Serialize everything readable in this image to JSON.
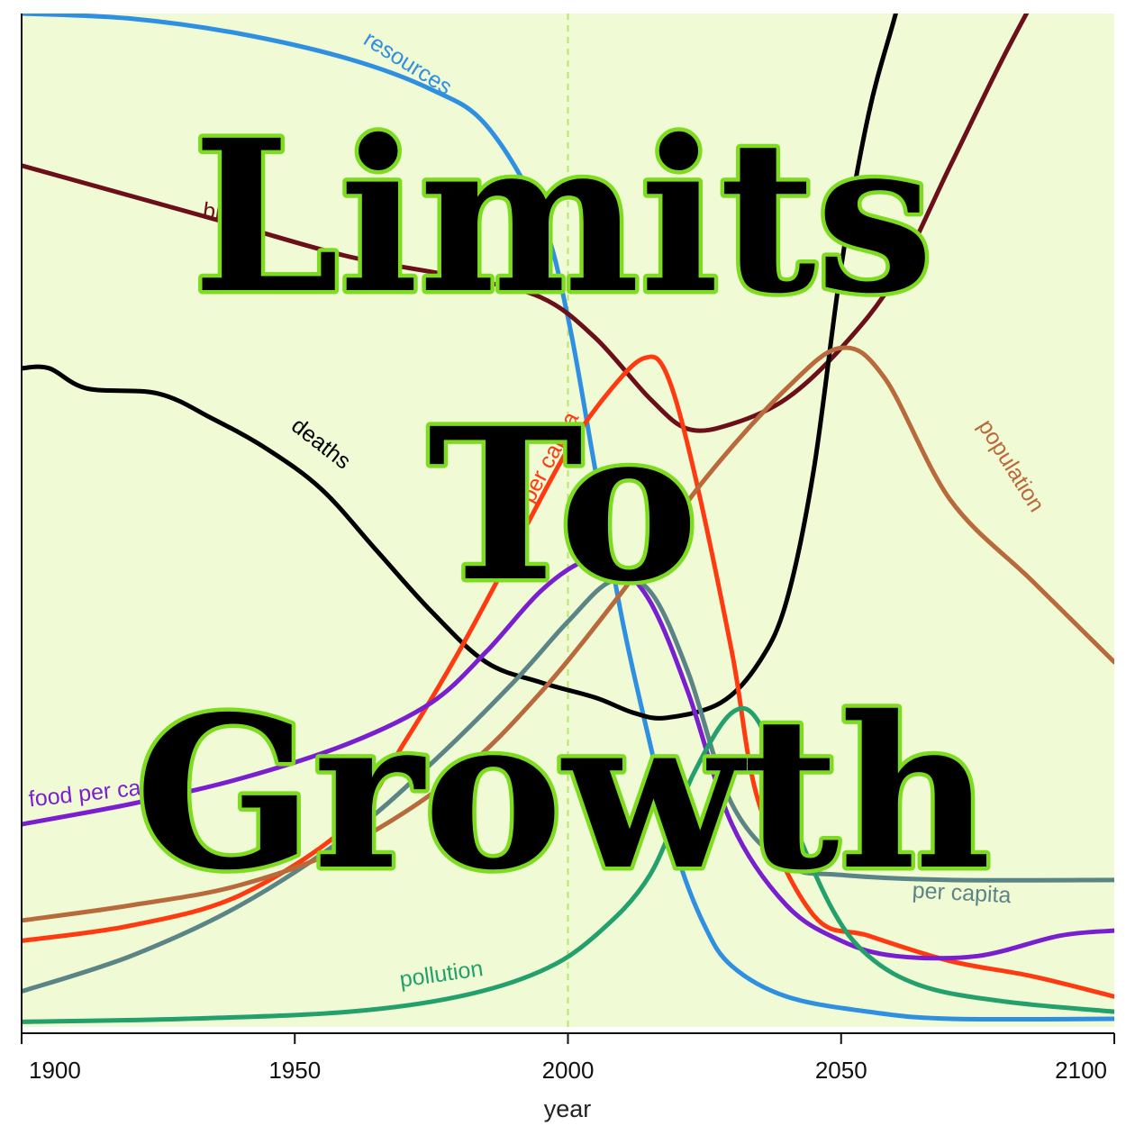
{
  "overlay": {
    "line1": "Limits",
    "line2": "To",
    "line3": "Growth"
  },
  "chart_data": {
    "type": "line",
    "xlabel": "year",
    "ylabel": "",
    "xlim": [
      1900,
      2100
    ],
    "ylim": [
      0,
      1
    ],
    "x_ticks": [
      1900,
      1950,
      2000,
      2050,
      2100
    ],
    "reference_line": {
      "x": 2000,
      "style": "dashed",
      "color": "#b9e66b"
    },
    "background": "#f0fad4",
    "grid": false,
    "series": [
      {
        "name": "resources",
        "color": "#2f8fe0",
        "points": [
          [
            1900,
            1.0
          ],
          [
            1920,
            0.995
          ],
          [
            1940,
            0.98
          ],
          [
            1960,
            0.955
          ],
          [
            1975,
            0.925
          ],
          [
            1985,
            0.89
          ],
          [
            1995,
            0.8
          ],
          [
            2000,
            0.7
          ],
          [
            2005,
            0.55
          ],
          [
            2010,
            0.4
          ],
          [
            2015,
            0.28
          ],
          [
            2020,
            0.17
          ],
          [
            2025,
            0.1
          ],
          [
            2030,
            0.06
          ],
          [
            2040,
            0.03
          ],
          [
            2055,
            0.015
          ],
          [
            2070,
            0.008
          ],
          [
            2100,
            0.008
          ]
        ]
      },
      {
        "name": "births",
        "color": "#6b0f1a",
        "points": [
          [
            1900,
            0.85
          ],
          [
            1920,
            0.82
          ],
          [
            1940,
            0.79
          ],
          [
            1960,
            0.76
          ],
          [
            1980,
            0.74
          ],
          [
            1995,
            0.72
          ],
          [
            2005,
            0.68
          ],
          [
            2015,
            0.62
          ],
          [
            2022,
            0.59
          ],
          [
            2030,
            0.595
          ],
          [
            2040,
            0.62
          ],
          [
            2050,
            0.67
          ],
          [
            2060,
            0.74
          ],
          [
            2070,
            0.85
          ],
          [
            2080,
            0.96
          ],
          [
            2090,
            1.06
          ]
        ]
      },
      {
        "name": "deaths",
        "color": "#000000",
        "points": [
          [
            1900,
            0.65
          ],
          [
            1905,
            0.65
          ],
          [
            1912,
            0.63
          ],
          [
            1925,
            0.625
          ],
          [
            1935,
            0.6
          ],
          [
            1945,
            0.57
          ],
          [
            1955,
            0.53
          ],
          [
            1965,
            0.47
          ],
          [
            1975,
            0.41
          ],
          [
            1985,
            0.36
          ],
          [
            1995,
            0.34
          ],
          [
            2005,
            0.325
          ],
          [
            2012,
            0.31
          ],
          [
            2018,
            0.305
          ],
          [
            2028,
            0.32
          ],
          [
            2035,
            0.36
          ],
          [
            2040,
            0.42
          ],
          [
            2045,
            0.55
          ],
          [
            2050,
            0.75
          ],
          [
            2055,
            0.9
          ],
          [
            2060,
            1.0
          ],
          [
            2065,
            1.1
          ]
        ]
      },
      {
        "name": "services per capita",
        "color": "#ff3a10",
        "points": [
          [
            1900,
            0.085
          ],
          [
            1920,
            0.1
          ],
          [
            1940,
            0.13
          ],
          [
            1960,
            0.2
          ],
          [
            1970,
            0.28
          ],
          [
            1980,
            0.37
          ],
          [
            1990,
            0.47
          ],
          [
            2000,
            0.57
          ],
          [
            2008,
            0.63
          ],
          [
            2014,
            0.66
          ],
          [
            2018,
            0.645
          ],
          [
            2023,
            0.55
          ],
          [
            2030,
            0.37
          ],
          [
            2035,
            0.22
          ],
          [
            2045,
            0.11
          ],
          [
            2055,
            0.09
          ],
          [
            2070,
            0.065
          ],
          [
            2085,
            0.05
          ],
          [
            2100,
            0.03
          ]
        ]
      },
      {
        "name": "food per capita",
        "color": "#7a1fd0",
        "points": [
          [
            1900,
            0.2
          ],
          [
            1920,
            0.22
          ],
          [
            1940,
            0.245
          ],
          [
            1960,
            0.28
          ],
          [
            1975,
            0.32
          ],
          [
            1985,
            0.37
          ],
          [
            1995,
            0.43
          ],
          [
            2003,
            0.46
          ],
          [
            2008,
            0.46
          ],
          [
            2015,
            0.42
          ],
          [
            2022,
            0.33
          ],
          [
            2030,
            0.2
          ],
          [
            2040,
            0.12
          ],
          [
            2050,
            0.085
          ],
          [
            2060,
            0.07
          ],
          [
            2075,
            0.07
          ],
          [
            2090,
            0.09
          ],
          [
            2100,
            0.095
          ]
        ]
      },
      {
        "name": "industrial output per capita",
        "color": "#5b8486",
        "points": [
          [
            1900,
            0.035
          ],
          [
            1920,
            0.07
          ],
          [
            1940,
            0.12
          ],
          [
            1960,
            0.19
          ],
          [
            1975,
            0.26
          ],
          [
            1990,
            0.34
          ],
          [
            2000,
            0.4
          ],
          [
            2008,
            0.44
          ],
          [
            2015,
            0.43
          ],
          [
            2022,
            0.35
          ],
          [
            2030,
            0.22
          ],
          [
            2040,
            0.16
          ],
          [
            2050,
            0.15
          ],
          [
            2070,
            0.145
          ],
          [
            2100,
            0.145
          ]
        ]
      },
      {
        "name": "population",
        "color": "#b86a3c",
        "points": [
          [
            1900,
            0.105
          ],
          [
            1920,
            0.12
          ],
          [
            1940,
            0.14
          ],
          [
            1960,
            0.18
          ],
          [
            1980,
            0.25
          ],
          [
            1995,
            0.33
          ],
          [
            2010,
            0.43
          ],
          [
            2025,
            0.54
          ],
          [
            2040,
            0.63
          ],
          [
            2050,
            0.67
          ],
          [
            2058,
            0.64
          ],
          [
            2070,
            0.52
          ],
          [
            2085,
            0.44
          ],
          [
            2100,
            0.36
          ]
        ]
      },
      {
        "name": "pollution",
        "color": "#23a06c",
        "points": [
          [
            1900,
            0.005
          ],
          [
            1930,
            0.008
          ],
          [
            1960,
            0.015
          ],
          [
            1980,
            0.03
          ],
          [
            1995,
            0.055
          ],
          [
            2005,
            0.09
          ],
          [
            2015,
            0.15
          ],
          [
            2023,
            0.25
          ],
          [
            2030,
            0.31
          ],
          [
            2035,
            0.3
          ],
          [
            2040,
            0.22
          ],
          [
            2048,
            0.12
          ],
          [
            2055,
            0.07
          ],
          [
            2065,
            0.04
          ],
          [
            2080,
            0.025
          ],
          [
            2100,
            0.015
          ]
        ]
      }
    ],
    "labels": [
      {
        "text": "resources",
        "series": "resources",
        "x": 1970,
        "y": 0.945,
        "angle": 32
      },
      {
        "text": "births",
        "series": "births",
        "x": 1938,
        "y": 0.795,
        "angle": 8
      },
      {
        "text": "deaths",
        "series": "deaths",
        "x": 1954,
        "y": 0.57,
        "angle": 38
      },
      {
        "text": "services per capita",
        "series": "services per capita",
        "x": 1994,
        "y": 0.52,
        "angle": -62
      },
      {
        "text": "food per capita",
        "series": "food per capita",
        "x": 1915,
        "y": 0.225,
        "angle": -6
      },
      {
        "text": "per capita",
        "series": "industrial output per capita",
        "x": 2072,
        "y": 0.125,
        "angle": 3
      },
      {
        "text": "population",
        "series": "population",
        "x": 2080,
        "y": 0.55,
        "angle": 58
      },
      {
        "text": "pollution",
        "series": "pollution",
        "x": 1977,
        "y": 0.045,
        "angle": -8
      }
    ]
  }
}
